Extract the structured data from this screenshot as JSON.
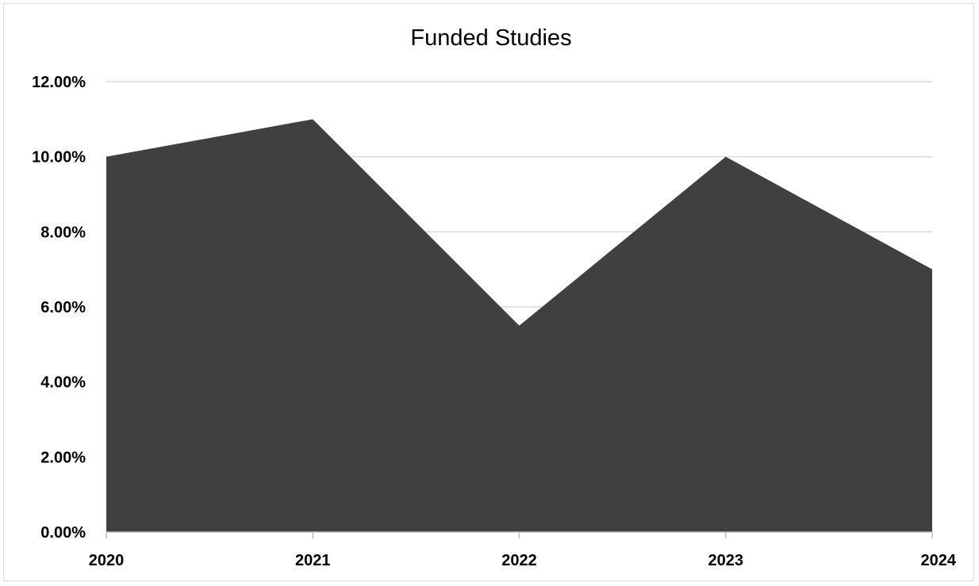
{
  "chart_data": {
    "type": "area",
    "title": "Funded Studies",
    "xlabel": "",
    "ylabel": "",
    "categories": [
      "2020",
      "2021",
      "2022",
      "2023",
      "2024"
    ],
    "values": [
      0.1,
      0.11,
      0.055,
      0.1,
      0.07
    ],
    "ylim": [
      0,
      0.12
    ],
    "yticks": [
      0,
      0.02,
      0.04,
      0.06,
      0.08,
      0.1,
      0.12
    ],
    "ytick_labels": [
      "0.00%",
      "2.00%",
      "4.00%",
      "6.00%",
      "8.00%",
      "10.00%",
      "12.00%"
    ],
    "grid": true,
    "legend": "none",
    "colors": {
      "fill": "#404040",
      "grid": "#d9d9d9",
      "axis": "#bfbfbf",
      "text": "#000000"
    }
  }
}
